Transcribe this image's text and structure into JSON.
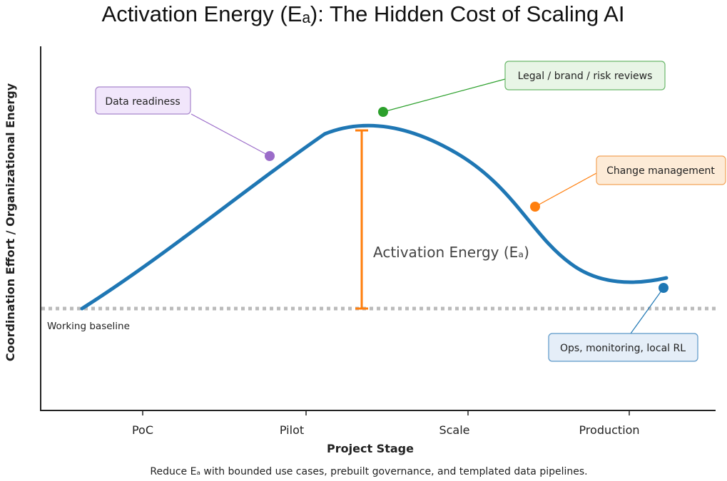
{
  "title": "Activation Energy (Eₐ): The Hidden Cost of Scaling AI",
  "y_axis_label": "Coordination Effort / Organizational Energy",
  "x_axis_label": "Project Stage",
  "x_ticks": [
    "PoC",
    "Pilot",
    "Scale",
    "Production"
  ],
  "baseline_label": "Working baseline",
  "activation_label": "Activation Energy (Eₐ)",
  "caption": "Reduce Eₐ with bounded use cases, prebuilt governance, and templated data pipelines.",
  "callouts": [
    {
      "id": "data-readiness",
      "label": "Data readiness",
      "color": "#9b6cc9",
      "fill": "#f1e6fb",
      "stroke": "#a886cc"
    },
    {
      "id": "legal-reviews",
      "label": "Legal / brand / risk reviews",
      "color": "#2ca02c",
      "fill": "#e8f5e6",
      "stroke": "#6ab86a"
    },
    {
      "id": "change-management",
      "label": "Change management",
      "color": "#ff7f0e",
      "fill": "#fdebd7",
      "stroke": "#f3a45a"
    },
    {
      "id": "ops-monitoring",
      "label": "Ops, monitoring, local RL",
      "color": "#1f77b4",
      "fill": "#e5eef8",
      "stroke": "#5b97c8"
    }
  ],
  "colors": {
    "curve": "#1f77b4",
    "activation_bar": "#ff7f0e",
    "baseline": "#bbbbbb",
    "axis": "#222222"
  }
}
